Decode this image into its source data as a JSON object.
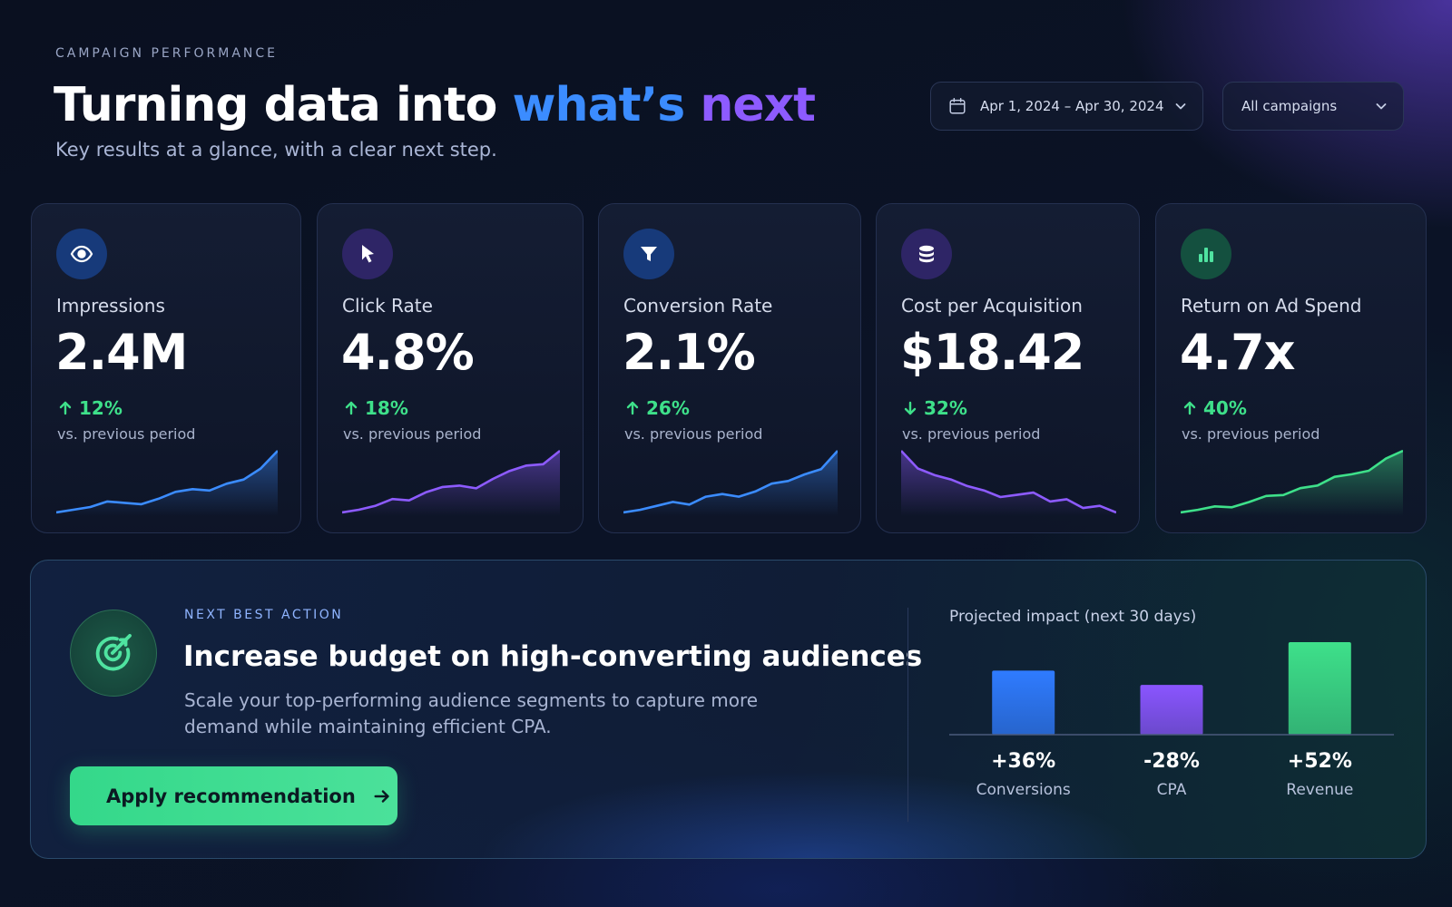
{
  "header": {
    "eyebrow": "CAMPAIGN PERFORMANCE",
    "title_part1": "Turning data into",
    "title_part2": "what’s",
    "title_part3": "next",
    "subtitle": "Key results at a glance, with a clear next step."
  },
  "filters": {
    "date_range": "Apr 1, 2024 – Apr 30, 2024",
    "campaign": "All campaigns"
  },
  "metrics": [
    {
      "icon": "eye-icon",
      "label": "Impressions",
      "value": "2.4M",
      "delta": "12%",
      "direction": "up",
      "note": "vs. previous period",
      "color": "#3b8cff",
      "icon_bg": "#173a7a",
      "trend": [
        3,
        5,
        7,
        11,
        10,
        9,
        13,
        18,
        20,
        19,
        24,
        27,
        35,
        48
      ]
    },
    {
      "icon": "cursor-icon",
      "label": "Click Rate",
      "value": "4.8%",
      "delta": "18%",
      "direction": "up",
      "note": "vs. previous period",
      "color": "#8d5bff",
      "icon_bg": "#2e2566",
      "trend": [
        4,
        6,
        9,
        14,
        13,
        19,
        23,
        24,
        22,
        29,
        35,
        39,
        40,
        50
      ]
    },
    {
      "icon": "funnel-icon",
      "label": "Conversion Rate",
      "value": "2.1%",
      "delta": "26%",
      "direction": "up",
      "note": "vs. previous period",
      "color": "#3b8cff",
      "icon_bg": "#173a7a",
      "trend": [
        3,
        5,
        8,
        11,
        9,
        15,
        17,
        15,
        19,
        25,
        27,
        32,
        36,
        50
      ]
    },
    {
      "icon": "coins-icon",
      "label": "Cost per Acquisition",
      "value": "$18.42",
      "delta": "32%",
      "direction": "down",
      "note": "vs. previous period",
      "color": "#8d5bff",
      "icon_bg": "#2e2566",
      "trend": [
        30,
        22,
        19,
        17,
        14,
        12,
        9,
        10,
        11,
        7,
        8,
        4,
        5,
        2
      ]
    },
    {
      "icon": "bar-chart-icon",
      "label": "Return on Ad Spend",
      "value": "4.7x",
      "delta": "40%",
      "direction": "up",
      "note": "vs. previous period",
      "color": "#3ee08a",
      "icon_bg": "#14503f",
      "trend": [
        4,
        7,
        11,
        10,
        16,
        23,
        24,
        32,
        35,
        45,
        48,
        52,
        66,
        75
      ]
    }
  ],
  "next_action": {
    "eyebrow": "NEXT BEST ACTION",
    "title": "Increase budget on high-converting audiences",
    "description": "Scale your top-performing audience segments to capture more demand while maintaining efficient CPA.",
    "button_label": "Apply recommendation"
  },
  "impact": {
    "title": "Projected impact (next 30 days)",
    "chart_data": {
      "type": "bar",
      "categories": [
        "Conversions",
        "CPA",
        "Revenue"
      ],
      "values": [
        36,
        -28,
        52
      ],
      "value_labels": [
        "+36%",
        "-28%",
        "+52%"
      ],
      "colors": [
        "#2f7bff",
        "#8a55ff",
        "#3ee08a"
      ]
    }
  }
}
